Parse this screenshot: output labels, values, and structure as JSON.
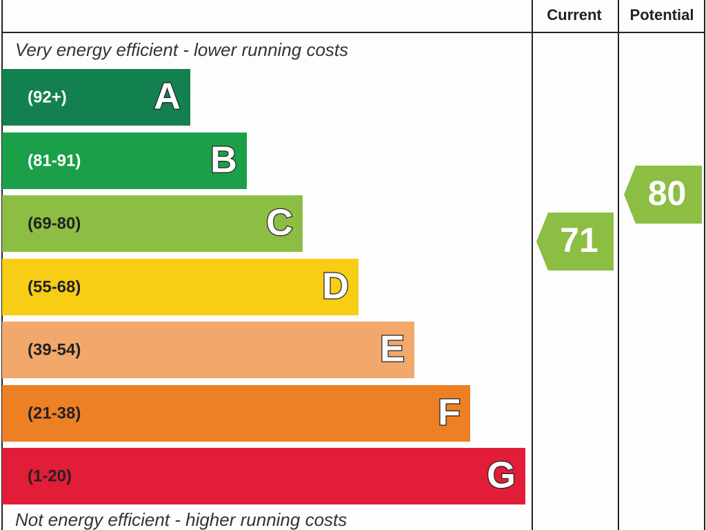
{
  "header": {
    "current": "Current",
    "potential": "Potential"
  },
  "top_note": "Very energy efficient - lower running costs",
  "bands": [
    {
      "range": "(92+)",
      "letter": "A",
      "color": "#12814f"
    },
    {
      "range": "(81-91)",
      "letter": "B",
      "color": "#1ba049"
    },
    {
      "range": "(69-80)",
      "letter": "C",
      "color": "#8dbe44"
    },
    {
      "range": "(55-68)",
      "letter": "D",
      "color": "#f7cd16"
    },
    {
      "range": "(39-54)",
      "letter": "E",
      "color": "#f2a86a"
    },
    {
      "range": "(21-38)",
      "letter": "F",
      "color": "#ed8025"
    },
    {
      "range": "(1-20)",
      "letter": "G",
      "color": "#e21d38"
    }
  ],
  "current": {
    "value": 71,
    "color": "#8dbe44"
  },
  "potential": {
    "value": 80,
    "color": "#8dbe44"
  },
  "bottom_note": "Not energy efficient - higher running costs"
}
